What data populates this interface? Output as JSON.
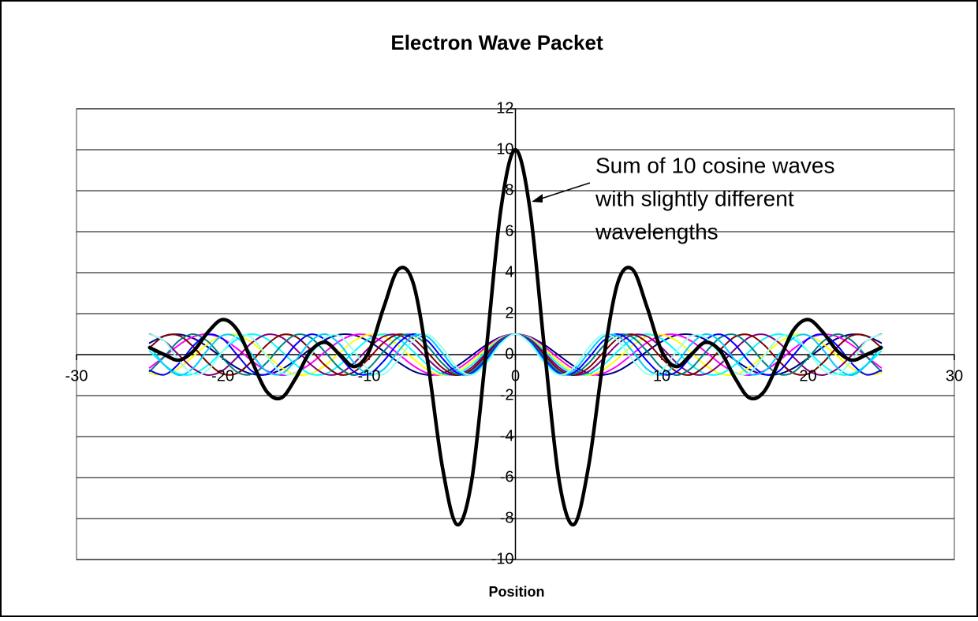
{
  "chart_data": {
    "type": "line",
    "title": "Electron Wave Packet",
    "xlabel": "Position",
    "annotation": [
      "Sum of 10 cosine waves",
      "with slightly different",
      "wavelengths"
    ],
    "x": [
      -25,
      -24,
      -23,
      -22,
      -21,
      -20,
      -19,
      -18,
      -17,
      -16,
      -15,
      -14,
      -13,
      -12,
      -11,
      -10,
      -9,
      -8,
      -7,
      -6,
      -5,
      -4,
      -3,
      -2,
      -1,
      0,
      1,
      2,
      3,
      4,
      5,
      6,
      7,
      8,
      9,
      10,
      11,
      12,
      13,
      14,
      15,
      16,
      17,
      18,
      19,
      20,
      21,
      22,
      23,
      24,
      25
    ],
    "xlim": [
      -30,
      30
    ],
    "xticks": [
      -30,
      -20,
      -10,
      0,
      10,
      20,
      30
    ],
    "ylim": [
      -10,
      12
    ],
    "yticks": [
      -10,
      -8,
      -6,
      -4,
      -2,
      0,
      2,
      4,
      6,
      8,
      10,
      12
    ],
    "grid": true,
    "series": [
      {
        "color": "#000080",
        "width": 2,
        "values": [
          0.57,
          0.91,
          0.99,
          0.79,
          0.36,
          -0.17,
          -0.66,
          -0.95,
          -0.97,
          -0.72,
          -0.26,
          0.28,
          0.73,
          0.98,
          0.95,
          0.64,
          0.16,
          -0.37,
          -0.8,
          -0.99,
          -0.91,
          -0.56,
          -0.05,
          0.47,
          0.86,
          1,
          0.86,
          0.47,
          -0.05,
          -0.56,
          -0.91,
          -0.99,
          -0.8,
          -0.37,
          0.16,
          0.64,
          0.95,
          0.98,
          0.73,
          0.28,
          -0.26,
          -0.72,
          -0.97,
          -0.95,
          -0.66,
          -0.17,
          0.36,
          0.79,
          0.99,
          0.91,
          0.57
        ]
      },
      {
        "color": "#ff00ff",
        "width": 2,
        "values": [
          -0.64,
          -0.1,
          0.47,
          0.88,
          0.99,
          0.77,
          0.28,
          -0.31,
          -0.79,
          -1,
          -0.87,
          -0.44,
          0.14,
          0.67,
          0.97,
          0.94,
          0.59,
          0.03,
          -0.53,
          -0.91,
          -0.98,
          -0.72,
          -0.21,
          0.37,
          0.83,
          1,
          0.83,
          0.37,
          -0.21,
          -0.72,
          -0.98,
          -0.91,
          -0.53,
          0.03,
          0.59,
          0.94,
          0.97,
          0.67,
          0.14,
          -0.44,
          -0.87,
          -1,
          -0.79,
          -0.31,
          0.28,
          0.77,
          0.99,
          0.88,
          0.47,
          -0.1,
          -0.64
        ]
      },
      {
        "color": "#ffff00",
        "width": 2,
        "values": [
          -0.91,
          -0.98,
          -0.66,
          -0.07,
          0.54,
          0.94,
          0.96,
          0.59,
          -0.02,
          -0.62,
          -0.97,
          -0.93,
          -0.52,
          0.1,
          0.68,
          0.98,
          0.89,
          0.44,
          -0.19,
          -0.74,
          -1,
          -0.85,
          -0.36,
          0.28,
          0.8,
          1,
          0.8,
          0.28,
          -0.36,
          -0.85,
          -1,
          -0.74,
          -0.19,
          0.44,
          0.89,
          0.98,
          0.68,
          0.1,
          -0.52,
          -0.93,
          -0.97,
          -0.62,
          -0.02,
          0.59,
          0.96,
          0.94,
          0.54,
          -0.07,
          -0.66,
          -0.98,
          -0.91
        ]
      },
      {
        "color": "#00ffff",
        "width": 2,
        "values": [
          0.17,
          -0.5,
          -0.94,
          -0.94,
          -0.5,
          0.17,
          0.77,
          1,
          0.77,
          0.17,
          -0.5,
          -0.94,
          -0.94,
          -0.5,
          0.17,
          0.77,
          1,
          0.77,
          0.17,
          -0.5,
          -0.94,
          -0.94,
          -0.5,
          0.17,
          0.77,
          1,
          0.77,
          0.17,
          -0.5,
          -0.94,
          -0.94,
          -0.5,
          0.17,
          0.77,
          1,
          0.77,
          0.17,
          -0.5,
          -0.94,
          -0.94,
          -0.5,
          0.17,
          0.77,
          1,
          0.77,
          0.17,
          -0.5,
          -0.94,
          -0.94,
          -0.5,
          0.17
        ]
      },
      {
        "color": "#800080",
        "width": 2,
        "values": [
          1,
          0.67,
          -0.02,
          -0.69,
          -1,
          -0.77,
          -0.12,
          0.59,
          0.98,
          0.85,
          0.26,
          -0.47,
          -0.95,
          -0.91,
          -0.39,
          0.34,
          0.89,
          0.96,
          0.52,
          -0.21,
          -0.82,
          -0.99,
          -0.63,
          0.07,
          0.73,
          1,
          0.73,
          0.07,
          -0.63,
          -0.99,
          -0.82,
          -0.21,
          0.52,
          0.96,
          0.89,
          0.34,
          -0.39,
          -0.91,
          -0.95,
          -0.47,
          0.26,
          0.85,
          0.98,
          0.59,
          -0.12,
          -0.77,
          -1,
          -0.69,
          -0.02,
          0.67,
          1
        ]
      },
      {
        "color": "#800000",
        "width": 2,
        "values": [
          0.34,
          0.91,
          0.93,
          0.37,
          -0.41,
          -0.94,
          -0.9,
          -0.31,
          0.47,
          0.96,
          0.87,
          0.24,
          -0.53,
          -0.98,
          -0.83,
          -0.17,
          0.59,
          0.99,
          0.79,
          0.1,
          -0.64,
          -1,
          -0.74,
          -0.03,
          0.69,
          1,
          0.69,
          -0.03,
          -0.74,
          -1,
          -0.64,
          0.1,
          0.79,
          0.99,
          0.59,
          -0.17,
          -0.83,
          -0.98,
          -0.53,
          0.24,
          0.87,
          0.96,
          0.47,
          -0.31,
          -0.9,
          -0.94,
          -0.41,
          0.37,
          0.93,
          0.91,
          0.34
        ]
      },
      {
        "color": "#008080",
        "width": 2,
        "values": [
          -0.82,
          -0.1,
          0.68,
          1,
          0.63,
          -0.17,
          -0.86,
          -0.95,
          -0.39,
          0.44,
          0.97,
          0.83,
          0.12,
          -0.67,
          -1,
          -0.64,
          0.16,
          0.85,
          0.96,
          0.41,
          -0.42,
          -0.96,
          -0.84,
          -0.14,
          0.66,
          1,
          0.66,
          -0.14,
          -0.84,
          -0.96,
          -0.42,
          0.41,
          0.96,
          0.85,
          0.16,
          -0.64,
          -1,
          -0.67,
          0.12,
          0.83,
          0.97,
          0.44,
          -0.39,
          -0.95,
          -0.86,
          -0.17,
          0.63,
          1,
          0.68,
          -0.1,
          -0.82
        ]
      },
      {
        "color": "#0000ff",
        "width": 2,
        "values": [
          -0.77,
          -0.98,
          -0.44,
          0.44,
          0.98,
          0.77,
          -0.03,
          -0.81,
          -0.96,
          -0.37,
          0.5,
          0.99,
          0.72,
          -0.1,
          -0.85,
          -0.94,
          -0.31,
          0.56,
          1,
          0.67,
          -0.17,
          -0.88,
          -0.91,
          -0.24,
          0.62,
          1,
          0.62,
          -0.24,
          -0.91,
          -0.88,
          -0.17,
          0.67,
          1,
          0.56,
          -0.31,
          -0.94,
          -0.85,
          -0.1,
          0.72,
          0.99,
          0.5,
          -0.37,
          -0.96,
          -0.81,
          -0.03,
          0.77,
          0.98,
          0.44,
          -0.44,
          -0.98,
          -0.77
        ]
      },
      {
        "color": "#00ccff",
        "width": 2,
        "values": [
          0.42,
          -0.5,
          -1,
          -0.64,
          0.26,
          0.94,
          0.82,
          0,
          -0.82,
          -0.94,
          -0.26,
          0.64,
          1,
          0.5,
          -0.42,
          -0.98,
          -0.71,
          0.17,
          0.91,
          0.87,
          0.09,
          -0.77,
          -0.97,
          -0.34,
          0.57,
          1,
          0.57,
          -0.34,
          -0.97,
          -0.77,
          0.09,
          0.87,
          0.91,
          0.17,
          -0.71,
          -0.98,
          -0.42,
          0.5,
          1,
          0.64,
          -0.26,
          -0.94,
          -0.82,
          0,
          0.82,
          0.94,
          0.26,
          -0.64,
          -1,
          -0.5,
          0.42
        ]
      },
      {
        "color": "#99ffee",
        "width": 2,
        "values": [
          0.98,
          0.67,
          -0.28,
          -0.96,
          -0.74,
          0.17,
          0.93,
          0.81,
          -0.07,
          -0.88,
          -0.87,
          -0.03,
          0.83,
          0.91,
          0.14,
          -0.77,
          -0.95,
          -0.24,
          0.69,
          0.98,
          0.34,
          -0.62,
          -0.99,
          -0.44,
          0.53,
          1,
          0.53,
          -0.44,
          -0.99,
          -0.62,
          0.34,
          0.98,
          0.69,
          -0.24,
          -0.95,
          -0.77,
          0.14,
          0.91,
          0.83,
          -0.03,
          -0.87,
          -0.88,
          -0.07,
          0.81,
          0.93,
          0.17,
          -0.74,
          -0.96,
          -0.28,
          0.67,
          0.98
        ]
      },
      {
        "color": "#000000",
        "width": 4.5,
        "values": [
          0.34,
          0,
          -0.27,
          0.18,
          1.11,
          1.71,
          1.19,
          -0.34,
          -1.8,
          -2.11,
          -1.13,
          0.17,
          0.6,
          0,
          -0.58,
          0.17,
          2.31,
          4.16,
          3.52,
          -0.32,
          -5.45,
          -8.29,
          -6.2,
          0.17,
          7.06,
          10,
          7.06,
          0.17,
          -6.2,
          -8.29,
          -5.45,
          -0.32,
          3.52,
          4.16,
          2.31,
          0.17,
          -0.58,
          0,
          0.6,
          0.17,
          -1.13,
          -2.11,
          -1.8,
          -0.34,
          1.19,
          1.71,
          1.11,
          0.18,
          -0.27,
          0,
          0.34
        ]
      }
    ]
  }
}
